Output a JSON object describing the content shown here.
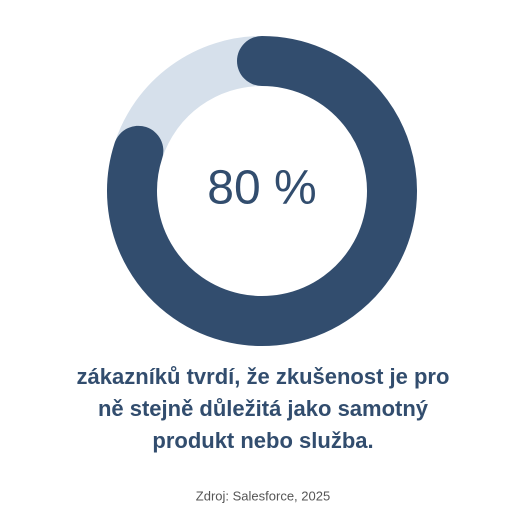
{
  "chart_data": {
    "type": "donut",
    "values": [
      80,
      20
    ],
    "value_labels": [
      "80 %",
      null
    ],
    "colors": [
      "#324d6e",
      "#d6e0eb"
    ],
    "caption": [
      "zákazníků tvrdí, že zkušenost je pro",
      "ně stejně důležitá jako samotný",
      "produkt nebo služba."
    ],
    "source": "Zdroj: Salesforce, 2025"
  }
}
